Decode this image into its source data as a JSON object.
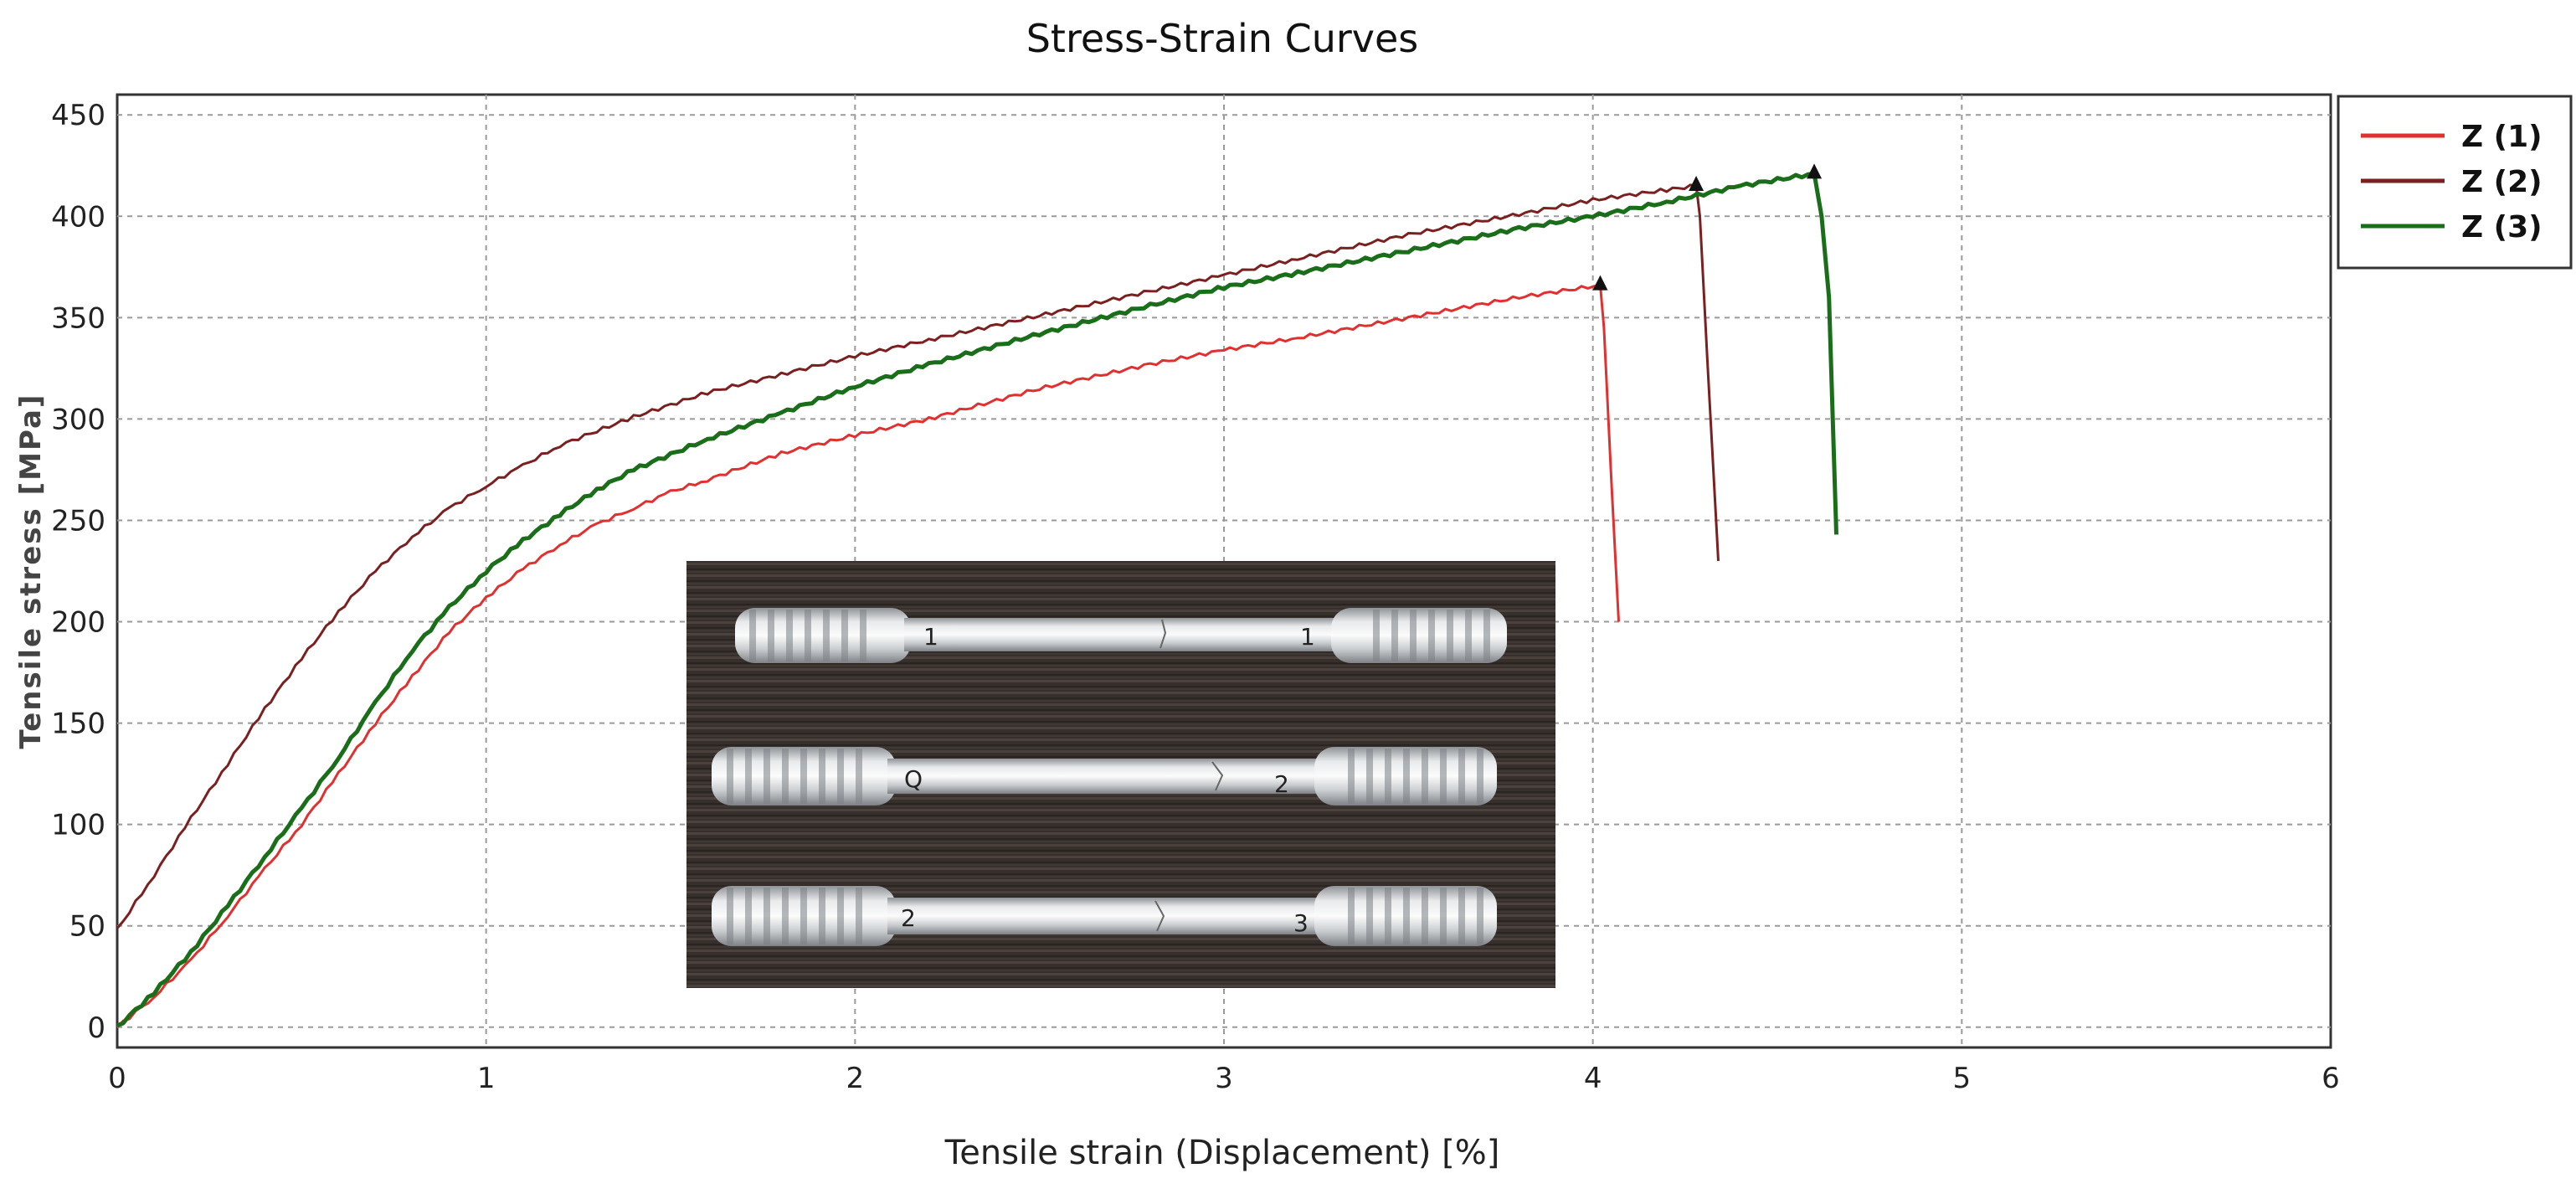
{
  "chart_data": {
    "type": "line",
    "title": "Stress-Strain Curves",
    "xlabel": "Tensile strain (Displacement) [%]",
    "ylabel": "Tensile stress [MPa]",
    "xlim": [
      0,
      6
    ],
    "ylim": [
      -10,
      460
    ],
    "xticks": [
      "0",
      "1",
      "2",
      "3",
      "4",
      "5",
      "6"
    ],
    "yticks": [
      "0",
      "50",
      "100",
      "150",
      "200",
      "250",
      "300",
      "350",
      "400",
      "450"
    ],
    "ytick_values": [
      0,
      50,
      100,
      150,
      200,
      250,
      300,
      350,
      400,
      450
    ],
    "grid": true,
    "legend_position": "right-outside-top",
    "series": [
      {
        "name": "Z (1)",
        "color": "#e03030",
        "x": [
          0,
          0.1,
          0.2,
          0.3,
          0.4,
          0.5,
          0.6,
          0.7,
          0.8,
          0.9,
          1.0,
          1.1,
          1.2,
          1.3,
          1.4,
          1.5,
          1.6,
          1.8,
          2.0,
          2.2,
          2.5,
          2.8,
          3.0,
          3.2,
          3.5,
          3.8,
          4.02,
          4.03,
          4.05,
          4.07
        ],
        "y": [
          0,
          15,
          33,
          55,
          78,
          100,
          125,
          150,
          173,
          195,
          212,
          226,
          238,
          248,
          256,
          264,
          270,
          283,
          292,
          300,
          315,
          327,
          334,
          340,
          350,
          360,
          366,
          345,
          270,
          200
        ]
      },
      {
        "name": "Z (2)",
        "color": "#7a2020",
        "x": [
          0,
          0.1,
          0.2,
          0.3,
          0.4,
          0.5,
          0.6,
          0.7,
          0.8,
          0.9,
          1.0,
          1.1,
          1.2,
          1.4,
          1.6,
          1.8,
          2.0,
          2.2,
          2.5,
          2.8,
          3.0,
          3.2,
          3.5,
          3.8,
          4.0,
          4.2,
          4.28,
          4.29,
          4.31,
          4.34
        ],
        "y": [
          48,
          75,
          103,
          130,
          157,
          182,
          205,
          225,
          242,
          256,
          267,
          277,
          287,
          301,
          313,
          322,
          331,
          339,
          351,
          363,
          371,
          379,
          391,
          401,
          408,
          413,
          415,
          400,
          330,
          230
        ]
      },
      {
        "name": "Z (3)",
        "color": "#1a6e1a",
        "x": [
          0,
          0.1,
          0.2,
          0.3,
          0.4,
          0.5,
          0.6,
          0.7,
          0.8,
          0.9,
          1.0,
          1.1,
          1.2,
          1.3,
          1.4,
          1.6,
          1.8,
          2.0,
          2.2,
          2.5,
          2.8,
          3.0,
          3.2,
          3.5,
          3.8,
          4.0,
          4.2,
          4.4,
          4.6,
          4.62,
          4.64,
          4.66
        ],
        "y": [
          0,
          17,
          37,
          60,
          84,
          108,
          133,
          160,
          186,
          207,
          225,
          240,
          253,
          265,
          275,
          290,
          303,
          316,
          327,
          342,
          356,
          365,
          372,
          383,
          394,
          400,
          407,
          415,
          421,
          400,
          360,
          243
        ]
      }
    ],
    "fracture_markers": [
      {
        "series": "Z (1)",
        "x": 4.02,
        "y": 366
      },
      {
        "series": "Z (2)",
        "x": 4.28,
        "y": 415
      },
      {
        "series": "Z (3)",
        "x": 4.6,
        "y": 421
      }
    ]
  },
  "inset_photo": {
    "specimen_marks": [
      "1",
      "1",
      "Q",
      "2",
      "2",
      "3"
    ]
  }
}
